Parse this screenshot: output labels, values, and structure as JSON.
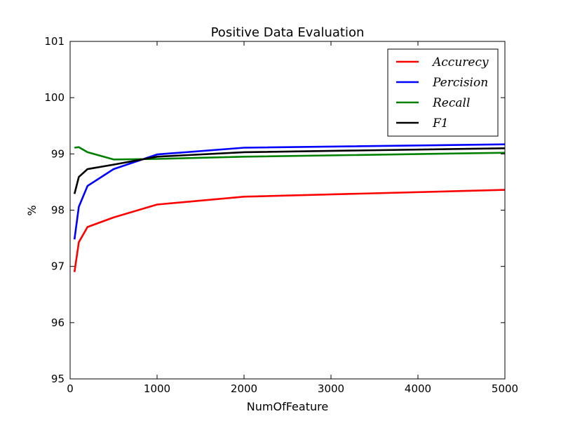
{
  "chart_data": {
    "type": "line",
    "title": "Positive Data Evaluation",
    "xlabel": "NumOfFeature",
    "ylabel": "%",
    "xlim": [
      0,
      5000
    ],
    "ylim": [
      95,
      101
    ],
    "xticks": [
      0,
      1000,
      2000,
      3000,
      4000,
      5000
    ],
    "yticks": [
      95,
      96,
      97,
      98,
      99,
      100,
      101
    ],
    "grid": false,
    "legend_position": "top-right",
    "x": [
      50,
      100,
      200,
      500,
      1000,
      2000,
      5000
    ],
    "series": [
      {
        "name": "Accurecy",
        "color": "#ff0000",
        "values": [
          96.9,
          97.43,
          97.7,
          97.87,
          98.1,
          98.24,
          98.36
        ]
      },
      {
        "name": "Percision",
        "color": "#0000ff",
        "values": [
          97.48,
          98.06,
          98.43,
          98.73,
          98.99,
          99.11,
          99.17
        ]
      },
      {
        "name": "Recall",
        "color": "#008000",
        "values": [
          99.11,
          99.12,
          99.03,
          98.9,
          98.91,
          98.95,
          99.02
        ]
      },
      {
        "name": "F1",
        "color": "#000000",
        "values": [
          98.29,
          98.59,
          98.73,
          98.81,
          98.95,
          99.03,
          99.1
        ]
      }
    ]
  }
}
